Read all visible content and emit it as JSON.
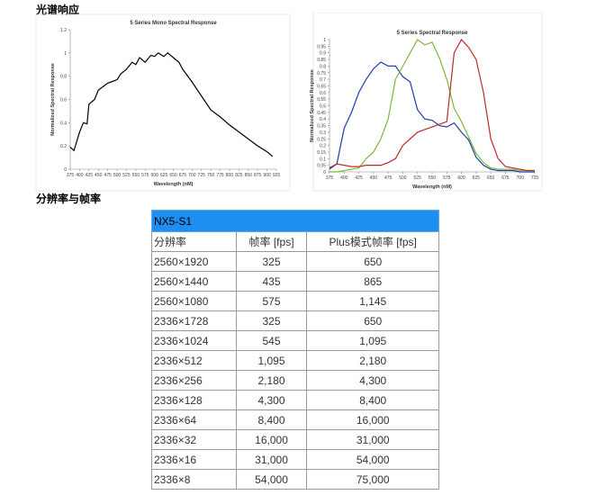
{
  "headings": [
    "光谱响应",
    "分辨率与帧率"
  ],
  "chart_data": [
    {
      "type": "line",
      "title": "5 Series Mono Spectral Response",
      "x_label": "Wavelength (nM)",
      "y_label": "Normalized Spectral Response",
      "x": [
        375,
        385,
        400,
        410,
        420,
        425,
        440,
        450,
        475,
        500,
        510,
        525,
        540,
        550,
        560,
        575,
        590,
        600,
        610,
        625,
        635,
        650,
        665,
        675,
        700,
        725,
        750,
        775,
        800,
        825,
        850,
        875,
        900,
        915
      ],
      "series": [
        {
          "color": "#000000",
          "values": [
            0.19,
            0.16,
            0.32,
            0.4,
            0.39,
            0.56,
            0.6,
            0.68,
            0.74,
            0.77,
            0.82,
            0.86,
            0.92,
            0.9,
            0.96,
            0.92,
            0.98,
            0.97,
            1.0,
            0.97,
            1.0,
            0.96,
            0.92,
            0.86,
            0.75,
            0.63,
            0.51,
            0.45,
            0.38,
            0.32,
            0.26,
            0.2,
            0.15,
            0.11
          ]
        }
      ],
      "xlim": [
        375,
        925
      ],
      "xticks": [
        375,
        400,
        425,
        450,
        475,
        500,
        525,
        550,
        575,
        600,
        625,
        650,
        675,
        700,
        725,
        750,
        775,
        800,
        825,
        850,
        875,
        900,
        925
      ],
      "ylim": [
        0,
        1.2
      ],
      "yticks": [
        0,
        0.2,
        0.4,
        0.6,
        0.8,
        1,
        1.2
      ]
    },
    {
      "type": "line",
      "title": "5 Series Spectral Response",
      "x_label": "Wavelength (nM)",
      "y_label": "Normalized Spectral Response",
      "x": [
        375,
        387.5,
        400,
        412.5,
        425,
        437.5,
        450,
        462.5,
        475,
        487.5,
        500,
        512.5,
        525,
        537.5,
        550,
        562.5,
        575,
        587.5,
        600,
        612.5,
        625,
        637.5,
        650,
        662.5,
        675,
        687.5,
        700,
        712.5,
        725
      ],
      "series": [
        {
          "color": "#1f3fa8",
          "values": [
            0.03,
            0.06,
            0.33,
            0.45,
            0.6,
            0.7,
            0.78,
            0.83,
            0.8,
            0.8,
            0.72,
            0.68,
            0.47,
            0.4,
            0.39,
            0.35,
            0.34,
            0.37,
            0.3,
            0.24,
            0.11,
            0.05,
            0.02,
            0.01,
            0.01,
            0.01,
            0.0,
            0.0,
            0.0
          ]
        },
        {
          "color": "#7cb83a",
          "values": [
            0.0,
            0.0,
            0.01,
            0.02,
            0.03,
            0.1,
            0.15,
            0.25,
            0.4,
            0.7,
            0.8,
            0.9,
            1.0,
            0.96,
            0.98,
            0.86,
            0.7,
            0.48,
            0.38,
            0.26,
            0.14,
            0.07,
            0.03,
            0.02,
            0.02,
            0.02,
            0.01,
            0.01,
            0.01
          ]
        },
        {
          "color": "#c0282a",
          "values": [
            0.02,
            0.06,
            0.05,
            0.04,
            0.04,
            0.05,
            0.05,
            0.05,
            0.07,
            0.1,
            0.2,
            0.25,
            0.3,
            0.32,
            0.34,
            0.36,
            0.38,
            0.9,
            1.0,
            0.94,
            0.85,
            0.6,
            0.25,
            0.1,
            0.04,
            0.03,
            0.02,
            0.01,
            0.01
          ]
        }
      ],
      "xlim": [
        375,
        725
      ],
      "xticks": [
        375,
        400,
        425,
        450,
        475,
        500,
        525,
        550,
        575,
        600,
        625,
        650,
        675,
        700,
        725
      ],
      "ylim": [
        0,
        1
      ],
      "yticks": [
        0,
        0.05,
        0.1,
        0.15,
        0.2,
        0.25,
        0.3,
        0.35,
        0.4,
        0.45,
        0.5,
        0.55,
        0.6,
        0.65,
        0.7,
        0.75,
        0.8,
        0.85,
        0.9,
        0.95,
        1
      ]
    }
  ],
  "table": {
    "title": "NX5-S1",
    "header": [
      "分辨率",
      "帧率 [fps]",
      "Plus模式帧率 [fps]"
    ],
    "rows": [
      [
        "2560×1920",
        "325",
        "650"
      ],
      [
        "2560×1440",
        "435",
        "865"
      ],
      [
        "2560×1080",
        "575",
        "1,145"
      ],
      [
        "2336×1728",
        "325",
        "650"
      ],
      [
        "2336×1024",
        "545",
        "1,095"
      ],
      [
        "2336×512",
        "1,095",
        "2,180"
      ],
      [
        "2336×256",
        "2,180",
        "4,300"
      ],
      [
        "2336×128",
        "4,300",
        "8,400"
      ],
      [
        "2336×64",
        "8,400",
        "16,000"
      ],
      [
        "2336×32",
        "16,000",
        "31,000"
      ],
      [
        "2336×16",
        "31,000",
        "54,000"
      ],
      [
        "2336×8",
        "54,000",
        "75,000"
      ]
    ]
  }
}
